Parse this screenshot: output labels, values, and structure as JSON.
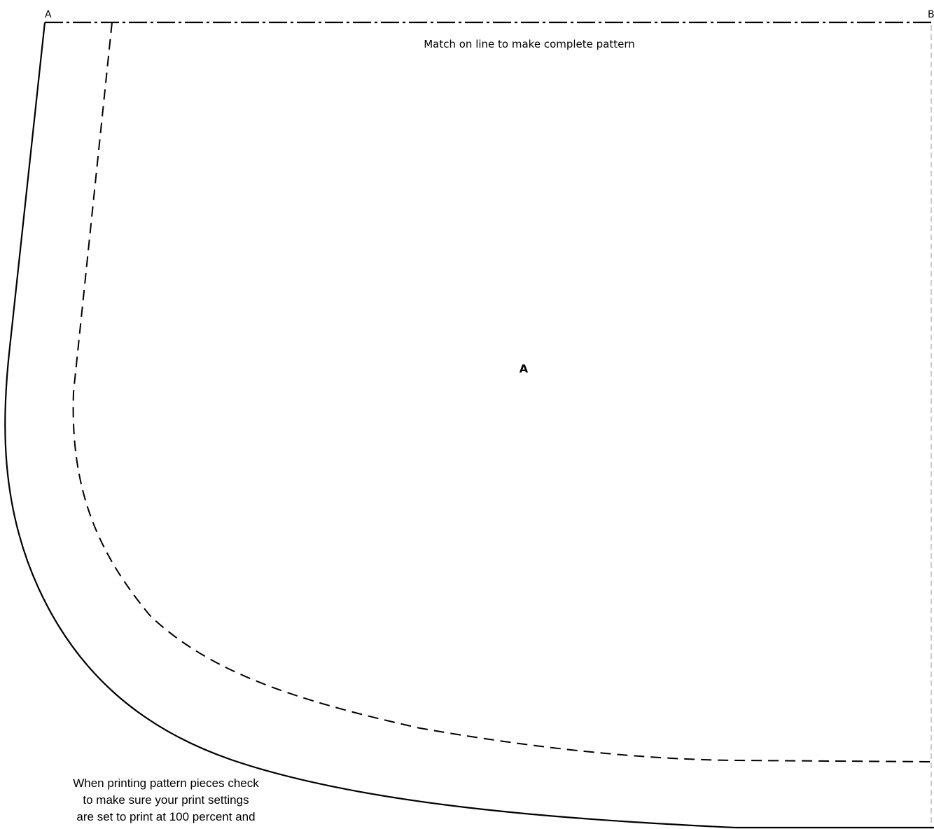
{
  "corners": {
    "left": "A",
    "right": "B"
  },
  "match_instruction": "Match on line to make complete pattern",
  "piece_label": "A",
  "print_note": [
    "When printing pattern pieces check",
    "to make sure your print settings",
    "are set to print at 100 percent and"
  ]
}
